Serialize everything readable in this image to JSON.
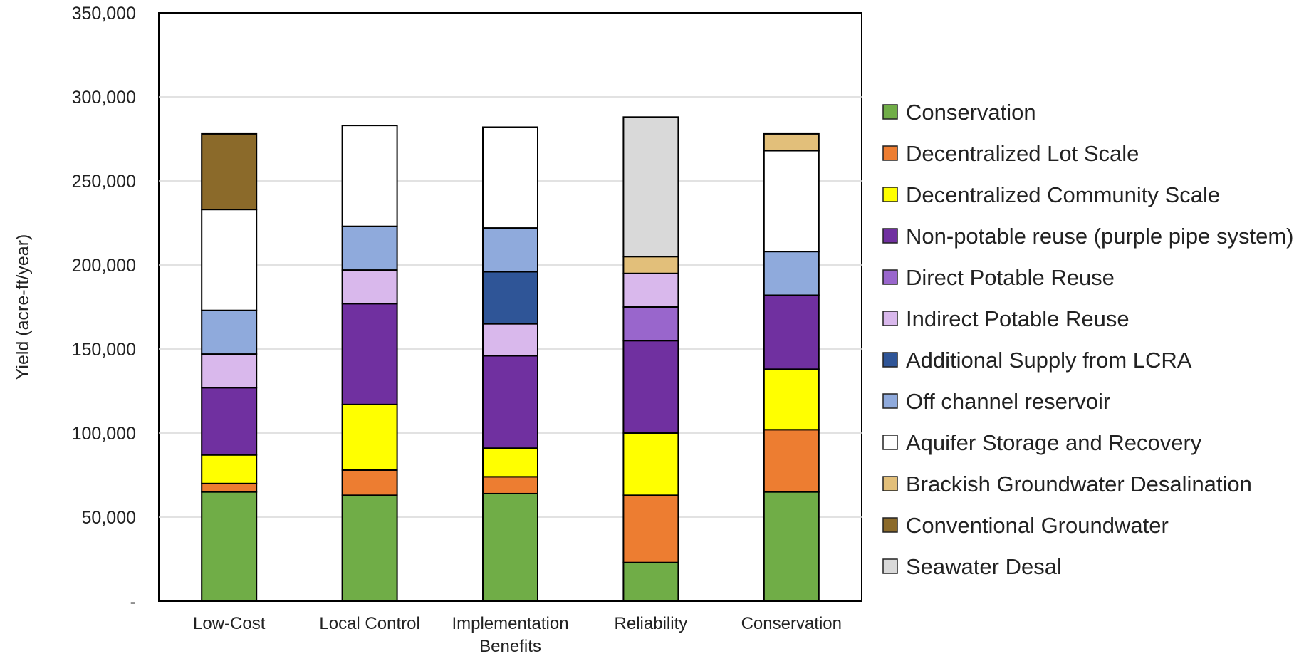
{
  "chart_data": {
    "type": "bar",
    "stacked": true,
    "title": "",
    "xlabel": "",
    "ylabel": "Yield (acre-ft/year)",
    "ylim": [
      0,
      350000
    ],
    "y_ticks": [
      0,
      50000,
      100000,
      150000,
      200000,
      250000,
      300000,
      350000
    ],
    "y_tick_labels": [
      "-",
      "50,000",
      "100,000",
      "150,000",
      "200,000",
      "250,000",
      "300,000",
      "350,000"
    ],
    "grid": true,
    "legend_position": "right",
    "categories": [
      [
        "Low-Cost"
      ],
      [
        "Local Control"
      ],
      [
        "Implementation",
        "Benefits"
      ],
      [
        "Reliability"
      ],
      [
        "Conservation"
      ]
    ],
    "series": [
      {
        "name": "Conservation",
        "color": "#70ad47",
        "values": [
          65000,
          63000,
          64000,
          23000,
          65000
        ]
      },
      {
        "name": "Decentralized Lot Scale",
        "color": "#ed7d31",
        "values": [
          5000,
          15000,
          10000,
          40000,
          37000
        ]
      },
      {
        "name": "Decentralized Community Scale",
        "color": "#ffff00",
        "values": [
          17000,
          39000,
          17000,
          37000,
          36000
        ]
      },
      {
        "name": "Non-potable reuse (purple pipe system)",
        "color": "#7030a0",
        "values": [
          40000,
          60000,
          55000,
          55000,
          44000
        ]
      },
      {
        "name": "Direct Potable Reuse",
        "color": "#9966cc",
        "values": [
          0,
          0,
          0,
          20000,
          0
        ]
      },
      {
        "name": "Indirect Potable Reuse",
        "color": "#d9b8ec",
        "values": [
          20000,
          20000,
          19000,
          20000,
          0
        ]
      },
      {
        "name": "Additional Supply from LCRA",
        "color": "#2f5597",
        "values": [
          0,
          0,
          31000,
          0,
          0
        ]
      },
      {
        "name": "Off channel reservoir",
        "color": "#8faadc",
        "values": [
          26000,
          26000,
          26000,
          0,
          26000
        ]
      },
      {
        "name": "Aquifer Storage and Recovery",
        "color": "#ffffff",
        "values": [
          60000,
          60000,
          60000,
          0,
          60000
        ]
      },
      {
        "name": "Brackish Groundwater Desalination",
        "color": "#e2bf7a",
        "values": [
          0,
          0,
          0,
          10000,
          10000
        ]
      },
      {
        "name": "Conventional Groundwater",
        "color": "#8b6a2a",
        "values": [
          45000,
          0,
          0,
          0,
          0
        ]
      },
      {
        "name": "Seawater Desal",
        "color": "#d9d9d9",
        "values": [
          0,
          0,
          0,
          83000,
          0
        ]
      }
    ]
  }
}
